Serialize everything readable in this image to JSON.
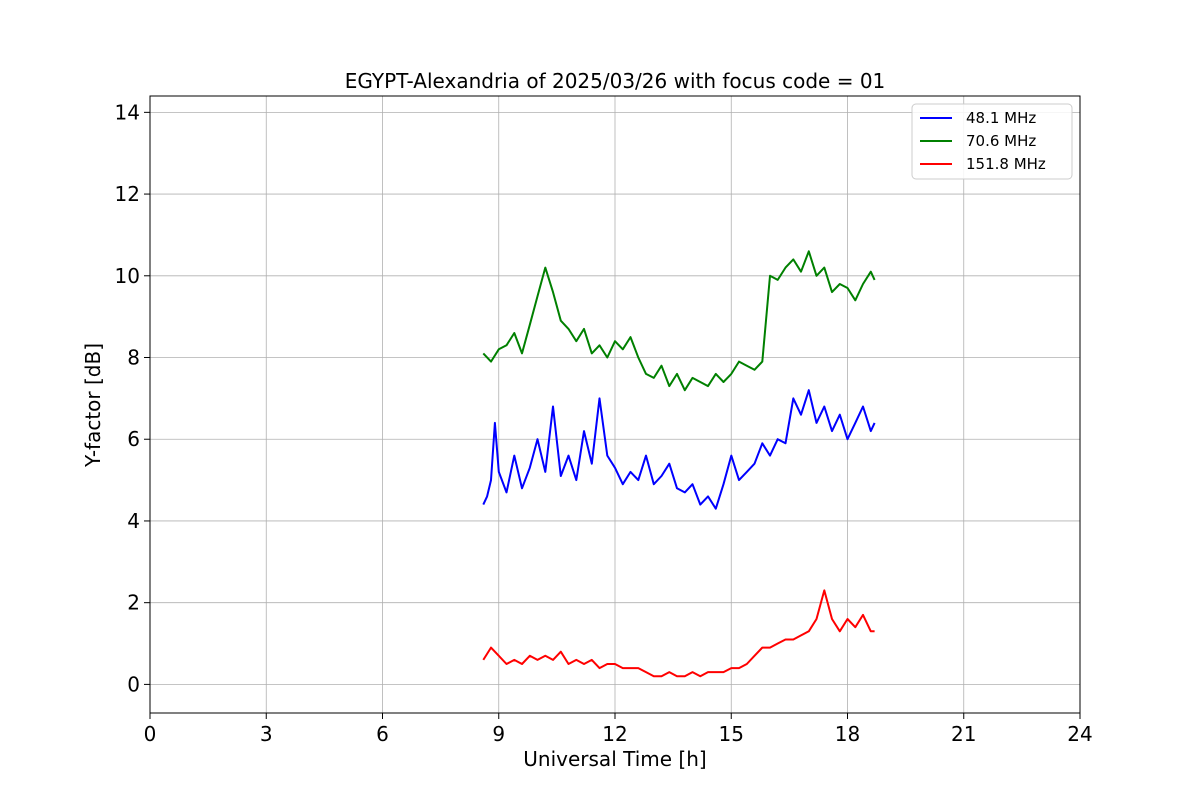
{
  "chart_data": {
    "type": "line",
    "title": "EGYPT-Alexandria of 2025/03/26 with focus code = 01",
    "xlabel": "Universal Time [h]",
    "ylabel": "Y-factor [dB]",
    "xlim": [
      0,
      24
    ],
    "ylim": [
      -0.7,
      14.4
    ],
    "xticks": [
      0,
      3,
      6,
      9,
      12,
      15,
      18,
      21,
      24
    ],
    "yticks": [
      0,
      2,
      4,
      6,
      8,
      10,
      12,
      14
    ],
    "grid": true,
    "legend_position": "top-right",
    "series": [
      {
        "name": " 48.1 MHz",
        "color": "#0000ff",
        "x": [
          8.6,
          8.7,
          8.8,
          8.9,
          9.0,
          9.2,
          9.4,
          9.6,
          9.8,
          10.0,
          10.2,
          10.4,
          10.6,
          10.8,
          11.0,
          11.2,
          11.4,
          11.6,
          11.8,
          12.0,
          12.2,
          12.4,
          12.6,
          12.8,
          13.0,
          13.2,
          13.4,
          13.6,
          13.8,
          14.0,
          14.2,
          14.4,
          14.6,
          14.8,
          15.0,
          15.2,
          15.4,
          15.6,
          15.8,
          16.0,
          16.2,
          16.4,
          16.6,
          16.8,
          17.0,
          17.2,
          17.4,
          17.6,
          17.8,
          18.0,
          18.2,
          18.4,
          18.6,
          18.7
        ],
        "y": [
          4.4,
          4.6,
          5.0,
          6.4,
          5.2,
          4.7,
          5.6,
          4.8,
          5.3,
          6.0,
          5.2,
          6.8,
          5.1,
          5.6,
          5.0,
          6.2,
          5.4,
          7.0,
          5.6,
          5.3,
          4.9,
          5.2,
          5.0,
          5.6,
          4.9,
          5.1,
          5.4,
          4.8,
          4.7,
          4.9,
          4.4,
          4.6,
          4.3,
          4.9,
          5.6,
          5.0,
          5.2,
          5.4,
          5.9,
          5.6,
          6.0,
          5.9,
          7.0,
          6.6,
          7.2,
          6.4,
          6.8,
          6.2,
          6.6,
          6.0,
          6.4,
          6.8,
          6.2,
          6.4
        ]
      },
      {
        "name": " 70.6 MHz",
        "color": "#008000",
        "x": [
          8.6,
          8.8,
          9.0,
          9.2,
          9.4,
          9.6,
          9.8,
          10.0,
          10.2,
          10.4,
          10.6,
          10.8,
          11.0,
          11.2,
          11.4,
          11.6,
          11.8,
          12.0,
          12.2,
          12.4,
          12.6,
          12.8,
          13.0,
          13.2,
          13.4,
          13.6,
          13.8,
          14.0,
          14.2,
          14.4,
          14.6,
          14.8,
          15.0,
          15.2,
          15.4,
          15.6,
          15.8,
          16.0,
          16.2,
          16.4,
          16.6,
          16.8,
          17.0,
          17.2,
          17.4,
          17.6,
          17.8,
          18.0,
          18.2,
          18.4,
          18.6,
          18.7
        ],
        "y": [
          8.1,
          7.9,
          8.2,
          8.3,
          8.6,
          8.1,
          8.8,
          9.5,
          10.2,
          9.6,
          8.9,
          8.7,
          8.4,
          8.7,
          8.1,
          8.3,
          8.0,
          8.4,
          8.2,
          8.5,
          8.0,
          7.6,
          7.5,
          7.8,
          7.3,
          7.6,
          7.2,
          7.5,
          7.4,
          7.3,
          7.6,
          7.4,
          7.6,
          7.9,
          7.8,
          7.7,
          7.9,
          10.0,
          9.9,
          10.2,
          10.4,
          10.1,
          10.6,
          10.0,
          10.2,
          9.6,
          9.8,
          9.7,
          9.4,
          9.8,
          10.1,
          9.9
        ]
      },
      {
        "name": "151.8 MHz",
        "color": "#ff0000",
        "x": [
          8.6,
          8.8,
          9.0,
          9.2,
          9.4,
          9.6,
          9.8,
          10.0,
          10.2,
          10.4,
          10.6,
          10.8,
          11.0,
          11.2,
          11.4,
          11.6,
          11.8,
          12.0,
          12.2,
          12.4,
          12.6,
          12.8,
          13.0,
          13.2,
          13.4,
          13.6,
          13.8,
          14.0,
          14.2,
          14.4,
          14.6,
          14.8,
          15.0,
          15.2,
          15.4,
          15.6,
          15.8,
          16.0,
          16.2,
          16.4,
          16.6,
          16.8,
          17.0,
          17.2,
          17.4,
          17.6,
          17.8,
          18.0,
          18.2,
          18.4,
          18.6,
          18.7
        ],
        "y": [
          0.6,
          0.9,
          0.7,
          0.5,
          0.6,
          0.5,
          0.7,
          0.6,
          0.7,
          0.6,
          0.8,
          0.5,
          0.6,
          0.5,
          0.6,
          0.4,
          0.5,
          0.5,
          0.4,
          0.4,
          0.4,
          0.3,
          0.2,
          0.2,
          0.3,
          0.2,
          0.2,
          0.3,
          0.2,
          0.3,
          0.3,
          0.3,
          0.4,
          0.4,
          0.5,
          0.7,
          0.9,
          0.9,
          1.0,
          1.1,
          1.1,
          1.2,
          1.3,
          1.6,
          2.3,
          1.6,
          1.3,
          1.6,
          1.4,
          1.7,
          1.3,
          1.3
        ]
      }
    ]
  }
}
